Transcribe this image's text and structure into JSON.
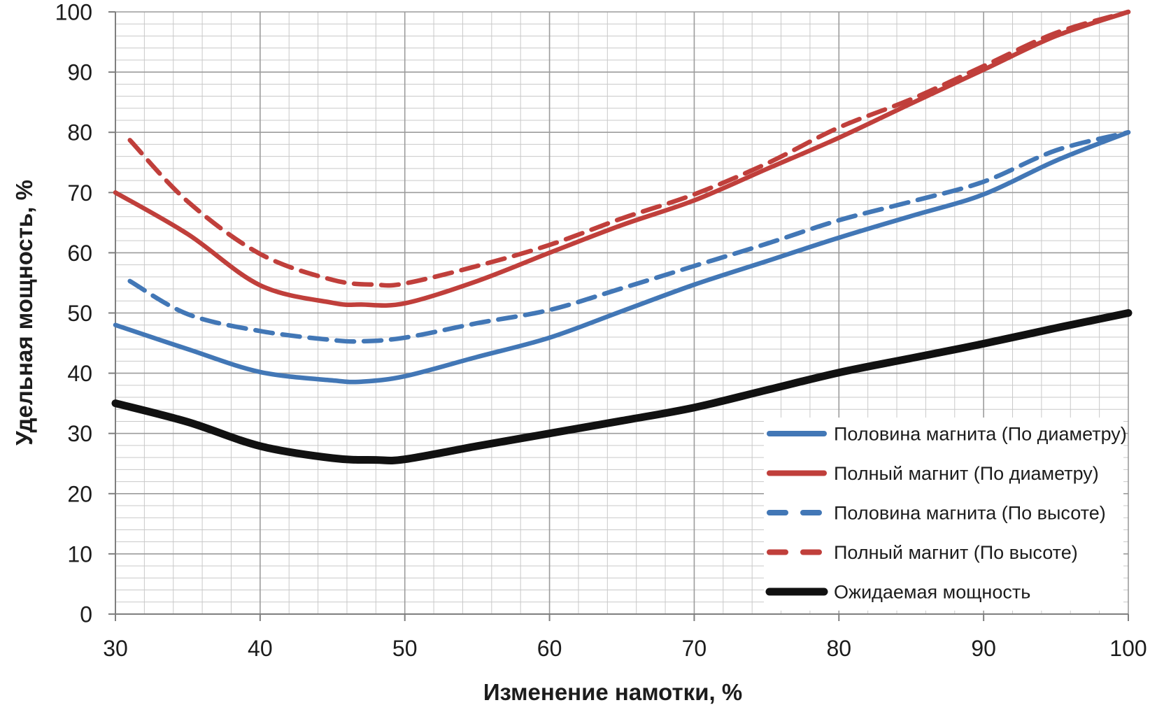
{
  "chart_data": {
    "type": "line",
    "title": "",
    "xlabel": "Изменение намотки, %",
    "ylabel": "Удельная мощность, %",
    "xlim": [
      30,
      100
    ],
    "ylim": [
      0,
      100
    ],
    "xticks": [
      30,
      40,
      50,
      60,
      70,
      80,
      90,
      100
    ],
    "yticks": [
      0,
      10,
      20,
      30,
      40,
      50,
      60,
      70,
      80,
      90,
      100
    ],
    "minor_step_x": 2,
    "minor_step_y": 2,
    "grid": "major+minor",
    "legend_position": "inside lower right",
    "series": [
      {
        "name": "half-magnet-diameter",
        "label": "Половина магнита (По диаметру)",
        "color": "#4277B6",
        "dashed": false,
        "thick": false,
        "x": [
          30,
          35,
          40,
          45,
          47,
          50,
          55,
          60,
          65,
          70,
          75,
          80,
          85,
          90,
          95,
          100
        ],
        "y": [
          48,
          44,
          40.2,
          38.8,
          38.6,
          39.5,
          42.7,
          45.9,
          50.3,
          54.7,
          58.6,
          62.5,
          66.1,
          69.7,
          75.3,
          80
        ]
      },
      {
        "name": "full-magnet-diameter",
        "label": "Полный магнит (По диаметру)",
        "color": "#C03F3B",
        "dashed": false,
        "thick": false,
        "x": [
          30,
          35,
          40,
          45,
          47,
          50,
          55,
          60,
          65,
          70,
          75,
          80,
          85,
          90,
          95,
          100
        ],
        "y": [
          70,
          63.1,
          54.6,
          51.7,
          51.4,
          51.6,
          55.3,
          60,
          64.6,
          68.7,
          73.9,
          79.1,
          84.8,
          90.4,
          96,
          100
        ]
      },
      {
        "name": "half-magnet-height",
        "label": "Половина магнита (По высоте)",
        "color": "#4277B6",
        "dashed": true,
        "thick": false,
        "x": [
          31,
          35,
          40,
          45,
          47,
          50,
          55,
          60,
          65,
          70,
          75,
          80,
          85,
          90,
          95,
          100
        ],
        "y": [
          55.3,
          49.8,
          47,
          45.5,
          45.3,
          45.9,
          48.3,
          50.5,
          54.1,
          57.8,
          61.5,
          65.4,
          68.5,
          71.8,
          77,
          80
        ]
      },
      {
        "name": "full-magnet-height",
        "label": "Полный магнит (По высоте)",
        "color": "#C03F3B",
        "dashed": true,
        "thick": false,
        "x": [
          31,
          35,
          40,
          45,
          48,
          50,
          55,
          60,
          65,
          70,
          75,
          80,
          85,
          90,
          95,
          100
        ],
        "y": [
          78.7,
          68.5,
          59.8,
          55.5,
          54.7,
          54.9,
          57.8,
          61.3,
          65.7,
          69.7,
          74.8,
          80.8,
          85.5,
          91,
          96.5,
          100
        ]
      },
      {
        "name": "expected-power",
        "label": "Ожидаемая мощность",
        "color": "#111111",
        "dashed": false,
        "thick": true,
        "x": [
          30,
          35,
          40,
          45,
          48,
          50,
          55,
          60,
          65,
          70,
          75,
          80,
          85,
          90,
          95,
          100
        ],
        "y": [
          35,
          31.9,
          27.9,
          25.9,
          25.6,
          25.7,
          27.9,
          30,
          32.1,
          34.3,
          37.2,
          40.1,
          42.5,
          44.9,
          47.5,
          50
        ]
      }
    ]
  },
  "style": {
    "minor_grid_color": "#C9C9C9",
    "major_grid_color": "#9C9C9C",
    "axis_color": "#7F7F7F",
    "legend_background": "#FFFFFF",
    "text_color": "#1C1C1C"
  }
}
